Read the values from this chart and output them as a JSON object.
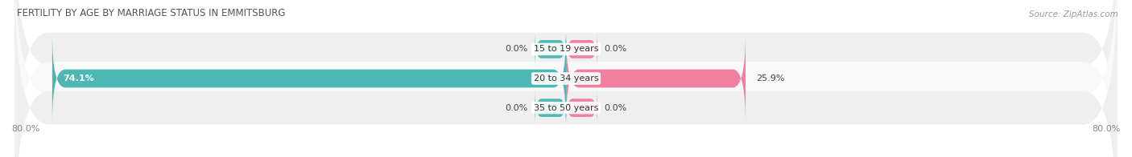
{
  "title": "FERTILITY BY AGE BY MARRIAGE STATUS IN EMMITSBURG",
  "source": "Source: ZipAtlas.com",
  "categories": [
    "15 to 19 years",
    "20 to 34 years",
    "35 to 50 years"
  ],
  "married_values": [
    0.0,
    74.1,
    0.0
  ],
  "unmarried_values": [
    0.0,
    25.9,
    0.0
  ],
  "xlim": [
    -80,
    80
  ],
  "x_left_label": "80.0%",
  "x_right_label": "80.0%",
  "married_color": "#4db8b3",
  "unmarried_color": "#f07fa0",
  "row_bg_odd": "#efefef",
  "row_bg_even": "#f9f9f9",
  "stub_size": 4.5,
  "title_fontsize": 8.5,
  "source_fontsize": 7.5,
  "label_fontsize": 8,
  "cat_label_fontsize": 8,
  "bar_height": 0.62,
  "figsize": [
    14.06,
    1.96
  ],
  "dpi": 100
}
